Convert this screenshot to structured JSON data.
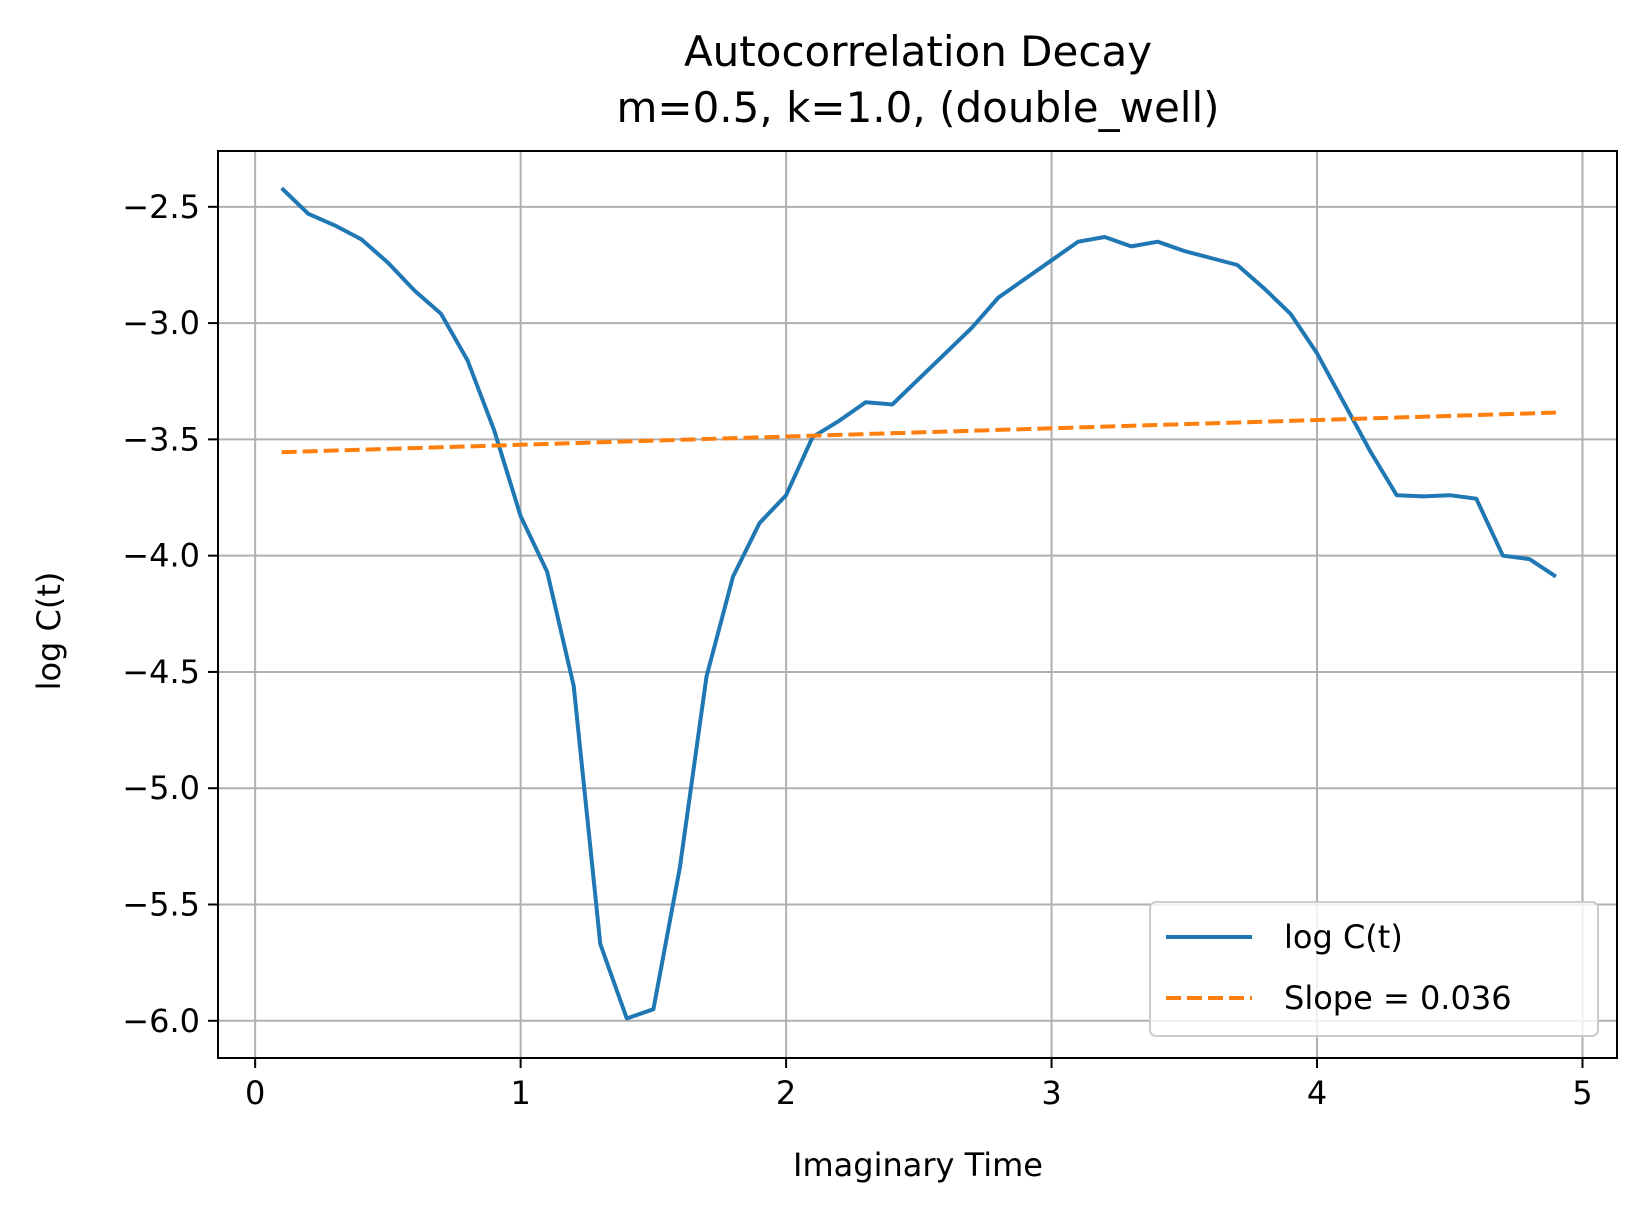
{
  "chart_data": {
    "type": "line",
    "title": "Autocorrelation Decay",
    "subtitle": "m=0.5, k=1.0, (double_well)",
    "xlabel": "Imaginary Time",
    "ylabel": "log C(t)",
    "xlim": [
      -0.14,
      5.13
    ],
    "ylim": [
      -6.16,
      -2.26
    ],
    "xticks": [
      0,
      1,
      2,
      3,
      4,
      5
    ],
    "xtick_labels": [
      "0",
      "1",
      "2",
      "3",
      "4",
      "5"
    ],
    "yticks": [
      -2.5,
      -3.0,
      -3.5,
      -4.0,
      -4.5,
      -5.0,
      -5.5,
      -6.0
    ],
    "ytick_labels": [
      "−2.5",
      "−3.0",
      "−3.5",
      "−4.0",
      "−4.5",
      "−5.0",
      "−5.5",
      "−6.0"
    ],
    "grid": true,
    "legend_position": "lower-right",
    "series": [
      {
        "name": "log C(t)",
        "style": "solid",
        "color": "#1f77b4",
        "x": [
          0.1,
          0.2,
          0.3,
          0.4,
          0.5,
          0.6,
          0.7,
          0.8,
          0.9,
          1.0,
          1.1,
          1.2,
          1.3,
          1.4,
          1.5,
          1.6,
          1.7,
          1.8,
          1.9,
          2.0,
          2.1,
          2.2,
          2.3,
          2.4,
          2.5,
          2.6,
          2.7,
          2.8,
          2.9,
          3.0,
          3.1,
          3.2,
          3.3,
          3.4,
          3.5,
          3.6,
          3.7,
          3.8,
          3.9,
          4.0,
          4.1,
          4.2,
          4.3,
          4.4,
          4.5,
          4.6,
          4.7,
          4.8,
          4.9
        ],
        "y": [
          -2.42,
          -2.53,
          -2.58,
          -2.64,
          -2.74,
          -2.86,
          -2.96,
          -3.16,
          -3.46,
          -3.83,
          -4.07,
          -4.56,
          -5.67,
          -5.99,
          -5.95,
          -5.34,
          -4.52,
          -4.09,
          -3.86,
          -3.74,
          -3.49,
          -3.42,
          -3.34,
          -3.35,
          -3.24,
          -3.13,
          -3.02,
          -2.89,
          -2.81,
          -2.73,
          -2.65,
          -2.63,
          -2.67,
          -2.65,
          -2.69,
          -2.72,
          -2.75,
          -2.85,
          -2.96,
          -3.13,
          -3.34,
          -3.55,
          -3.74,
          -3.745,
          -3.74,
          -3.755,
          -4.0,
          -4.015,
          -4.09
        ]
      },
      {
        "name": "Slope = 0.036",
        "style": "dashed",
        "color": "#ff7f0e",
        "x": [
          0.1,
          4.9
        ],
        "y": [
          -3.555,
          -3.385
        ]
      }
    ]
  }
}
